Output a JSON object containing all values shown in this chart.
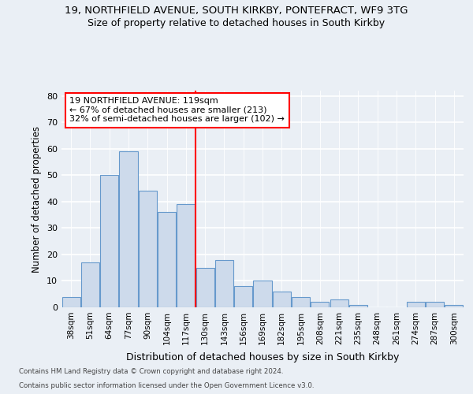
{
  "title1": "19, NORTHFIELD AVENUE, SOUTH KIRKBY, PONTEFRACT, WF9 3TG",
  "title2": "Size of property relative to detached houses in South Kirkby",
  "xlabel": "Distribution of detached houses by size in South Kirkby",
  "ylabel": "Number of detached properties",
  "categories": [
    "38sqm",
    "51sqm",
    "64sqm",
    "77sqm",
    "90sqm",
    "104sqm",
    "117sqm",
    "130sqm",
    "143sqm",
    "156sqm",
    "169sqm",
    "182sqm",
    "195sqm",
    "208sqm",
    "221sqm",
    "235sqm",
    "248sqm",
    "261sqm",
    "274sqm",
    "287sqm",
    "300sqm"
  ],
  "values": [
    4,
    17,
    50,
    59,
    44,
    36,
    39,
    15,
    18,
    8,
    10,
    6,
    4,
    2,
    3,
    1,
    0,
    0,
    2,
    2,
    1
  ],
  "bar_color": "#cddaeb",
  "bar_edge_color": "#6699cc",
  "vline_index": 6,
  "annotation_line1": "19 NORTHFIELD AVENUE: 119sqm",
  "annotation_line2": "← 67% of detached houses are smaller (213)",
  "annotation_line3": "32% of semi-detached houses are larger (102) →",
  "ylim": [
    0,
    82
  ],
  "yticks": [
    0,
    10,
    20,
    30,
    40,
    50,
    60,
    70,
    80
  ],
  "background_color": "#eaeff5",
  "plot_background": "#eaeff5",
  "grid_color": "#ffffff",
  "footer1": "Contains HM Land Registry data © Crown copyright and database right 2024.",
  "footer2": "Contains public sector information licensed under the Open Government Licence v3.0."
}
